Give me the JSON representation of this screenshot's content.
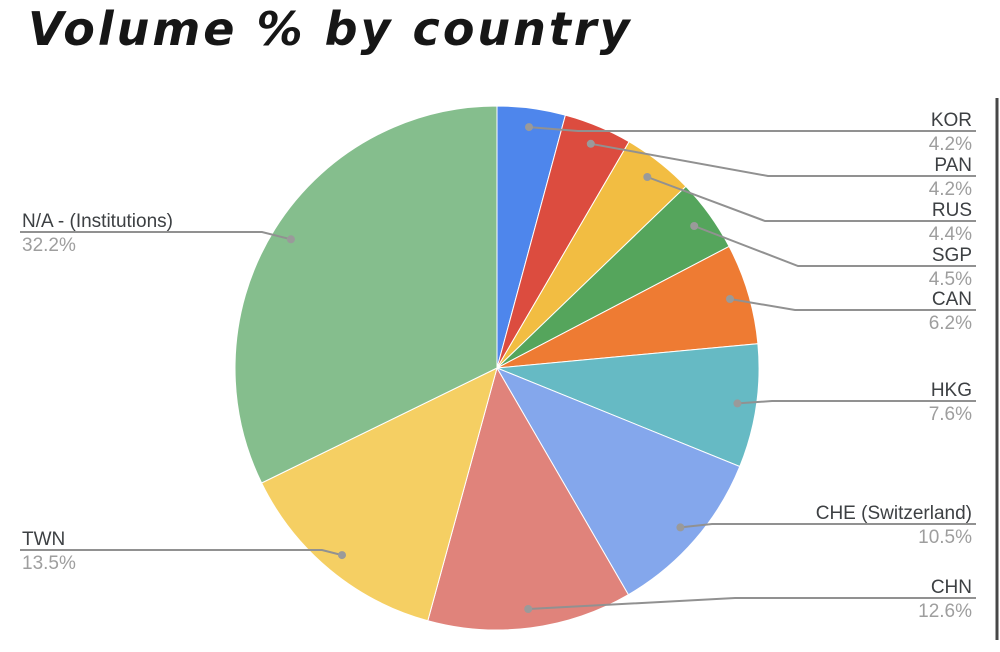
{
  "title": "Volume % by country",
  "chart_data": {
    "type": "pie",
    "title": "Volume % by country",
    "unit": "%",
    "start_angle_deg": 0,
    "direction": "clockwise",
    "legend_position": "none",
    "labels_style": "outside-callout",
    "background": "#ffffff",
    "label_text_color": "#3d4043",
    "pct_text_color": "#9e9e9e",
    "leader_line_color": "#919191",
    "slices": [
      {
        "label": "KOR",
        "value": 4.2,
        "display": "4.2%",
        "color": "#4e86ec"
      },
      {
        "label": "PAN",
        "value": 4.2,
        "display": "4.2%",
        "color": "#dc4c3f"
      },
      {
        "label": "RUS",
        "value": 4.4,
        "display": "4.4%",
        "color": "#f2bd42"
      },
      {
        "label": "SGP",
        "value": 4.5,
        "display": "4.5%",
        "color": "#55a55c"
      },
      {
        "label": "CAN",
        "value": 6.2,
        "display": "6.2%",
        "color": "#ee7b33"
      },
      {
        "label": "HKG",
        "value": 7.6,
        "display": "7.6%",
        "color": "#66bac4"
      },
      {
        "label": "CHE (Switzerland)",
        "value": 10.5,
        "display": "10.5%",
        "color": "#84a7ec"
      },
      {
        "label": "CHN",
        "value": 12.6,
        "display": "12.6%",
        "color": "#e0837b"
      },
      {
        "label": "TWN",
        "value": 13.5,
        "display": "13.5%",
        "color": "#f5cf63"
      },
      {
        "label": "N/A - (Institutions)",
        "value": 32.2,
        "display": "32.2%",
        "color": "#85be8d"
      }
    ]
  }
}
